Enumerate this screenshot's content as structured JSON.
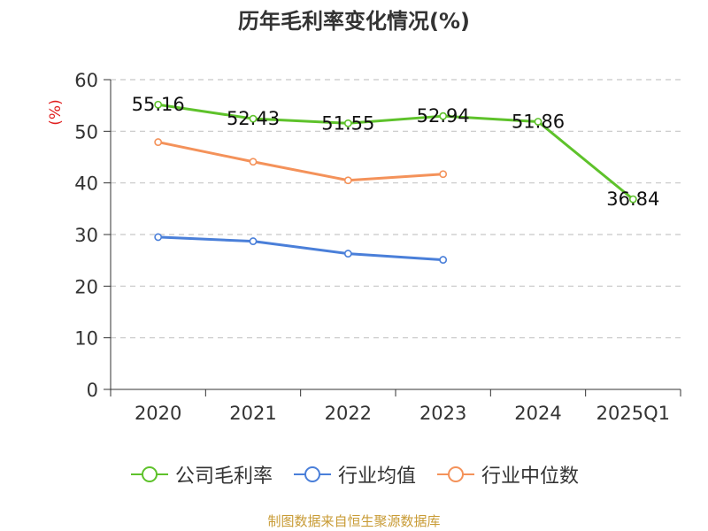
{
  "chart_data": {
    "type": "line",
    "title": "历年毛利率变化情况(%)",
    "ylabel": "(%)",
    "categories": [
      "2020",
      "2021",
      "2022",
      "2023",
      "2024",
      "2025Q1"
    ],
    "ylim": [
      0,
      60
    ],
    "yticks": [
      0,
      10,
      20,
      30,
      40,
      50,
      60
    ],
    "grid": true,
    "legend_position": "bottom",
    "series": [
      {
        "name": "公司毛利率",
        "color": "#5ec22b",
        "values": [
          55.16,
          52.43,
          51.55,
          52.94,
          51.86,
          36.84
        ],
        "labels": [
          "55.16",
          "52.43",
          "51.55",
          "52.94",
          "51.86",
          "36.84"
        ]
      },
      {
        "name": "行业均值",
        "color": "#4a7fd9",
        "values": [
          29.5,
          28.7,
          26.3,
          25.1,
          null,
          null
        ]
      },
      {
        "name": "行业中位数",
        "color": "#f4925a",
        "values": [
          47.9,
          44.1,
          40.5,
          41.7,
          null,
          null
        ]
      }
    ]
  },
  "source": "制图数据来自恒生聚源数据库"
}
